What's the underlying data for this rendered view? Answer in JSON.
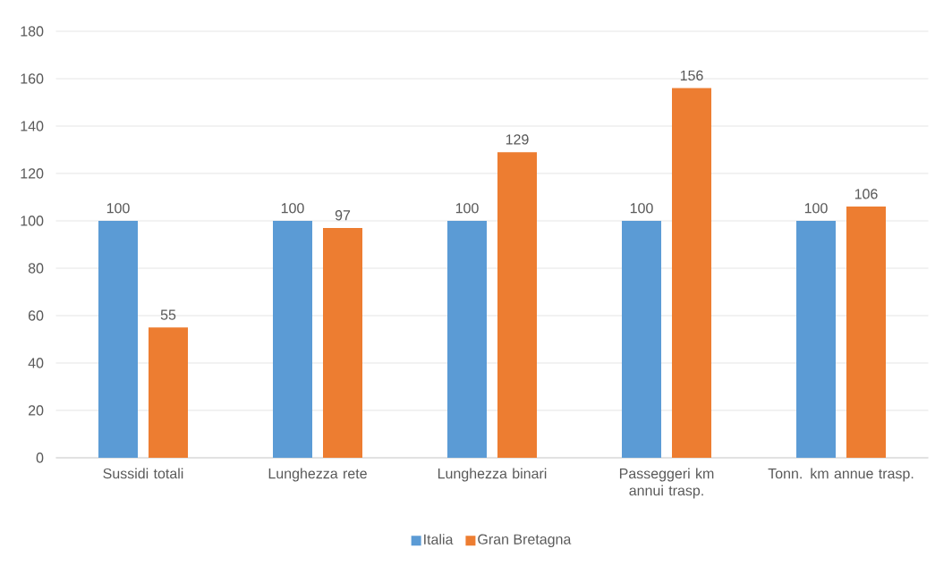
{
  "chart_data": {
    "type": "bar",
    "categories": [
      "Sussidi totali",
      "Lunghezza rete",
      "Lunghezza binari",
      "Passeggeri km annui trasp.",
      "Tonn. km annue trasp."
    ],
    "series": [
      {
        "name": "Italia",
        "color": "#5b9bd5",
        "values": [
          100,
          100,
          100,
          100,
          100
        ]
      },
      {
        "name": "Gran Bretagna",
        "color": "#ed7d31",
        "values": [
          55,
          97,
          129,
          156,
          106
        ]
      }
    ],
    "ylim": [
      0,
      180
    ],
    "yticks": [
      0,
      20,
      40,
      60,
      80,
      100,
      120,
      140,
      160,
      180
    ],
    "grid": "y",
    "legend": "bottom",
    "data_labels": true
  }
}
